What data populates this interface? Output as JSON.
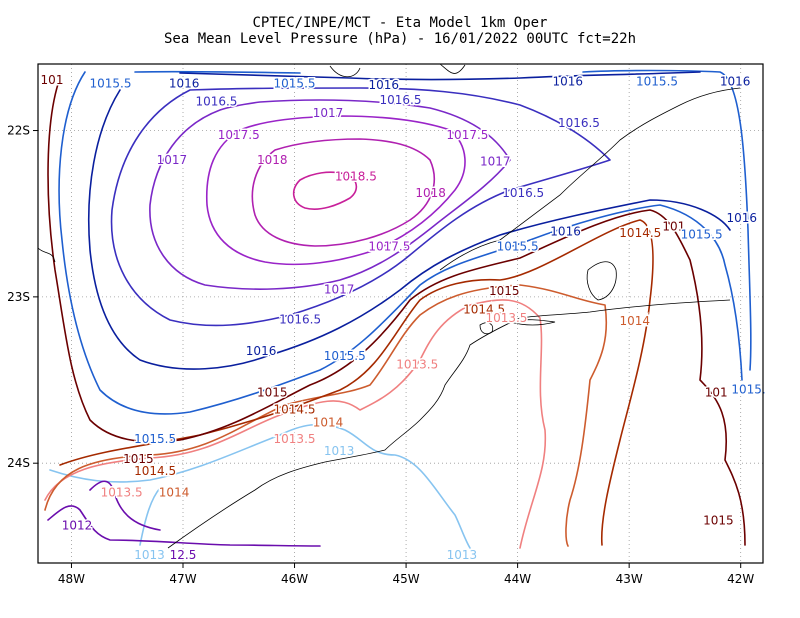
{
  "title_line1": "CPTEC/INPE/MCT -  Eta Model 1km Oper",
  "title_line2": "Sea Mean Level Pressure (hPa) - 16/01/2022 00UTC fct=22h",
  "map": {
    "lon_range": [
      -48.3,
      -41.8
    ],
    "lat_range": [
      -24.6,
      -21.6
    ],
    "lon_ticks": [
      {
        "value": -48,
        "label": "48W"
      },
      {
        "value": -47,
        "label": "47W"
      },
      {
        "value": -46,
        "label": "46W"
      },
      {
        "value": -45,
        "label": "45W"
      },
      {
        "value": -44,
        "label": "44W"
      },
      {
        "value": -43,
        "label": "43W"
      },
      {
        "value": -42,
        "label": "42W"
      }
    ],
    "lat_ticks": [
      {
        "value": -22,
        "label": "22S"
      },
      {
        "value": -23,
        "label": "23S"
      },
      {
        "value": -24,
        "label": "24S"
      }
    ],
    "grid": "dotted",
    "colors": {
      "1012.5": "#6a0dad",
      "1013": "#87c4f0",
      "1013.5": "#f08080",
      "1014": "#cd5c2e",
      "1014.5": "#a52a00",
      "1015": "#6b0000",
      "1015.5": "#1f5fcf",
      "1016": "#0a1f9e",
      "1016.5": "#3a2fbf",
      "1017": "#7a28c8",
      "1017.5": "#9a24c8",
      "1018": "#b020b0",
      "1018.5": "#c8209a"
    }
  },
  "labels": [
    {
      "text": "101",
      "lon": -48.2,
      "lat": -21.72,
      "level": "1015"
    },
    {
      "text": "1015.5",
      "lon": -47.65,
      "lat": -21.74,
      "level": "1015.5"
    },
    {
      "text": "1016",
      "lon": -46.99,
      "lat": -21.74,
      "level": "1016"
    },
    {
      "text": "1015.5",
      "lon": -46.0,
      "lat": -21.74,
      "level": "1015.5"
    },
    {
      "text": "1016",
      "lon": -45.2,
      "lat": -21.75,
      "level": "1016"
    },
    {
      "text": "1016",
      "lon": -43.55,
      "lat": -21.73,
      "level": "1016"
    },
    {
      "text": "1015.5",
      "lon": -42.75,
      "lat": -21.73,
      "level": "1015.5"
    },
    {
      "text": "1016",
      "lon": -42.05,
      "lat": -21.73,
      "level": "1016"
    },
    {
      "text": "1016.5",
      "lon": -46.7,
      "lat": -21.85,
      "level": "1016.5"
    },
    {
      "text": "1016.5",
      "lon": -45.05,
      "lat": -21.84,
      "level": "1016.5"
    },
    {
      "text": "1017",
      "lon": -45.7,
      "lat": -21.92,
      "level": "1017"
    },
    {
      "text": "1016.5",
      "lon": -43.45,
      "lat": -21.98,
      "level": "1016.5"
    },
    {
      "text": "1017.5",
      "lon": -46.5,
      "lat": -22.05,
      "level": "1017.5"
    },
    {
      "text": "1017.5",
      "lon": -44.45,
      "lat": -22.05,
      "level": "1017.5"
    },
    {
      "text": "1017",
      "lon": -47.1,
      "lat": -22.2,
      "level": "1017"
    },
    {
      "text": "1018",
      "lon": -46.2,
      "lat": -22.2,
      "level": "1018"
    },
    {
      "text": "1017",
      "lon": -44.2,
      "lat": -22.21,
      "level": "1017"
    },
    {
      "text": "1018.5",
      "lon": -45.45,
      "lat": -22.3,
      "level": "1018.5"
    },
    {
      "text": "1018",
      "lon": -44.78,
      "lat": -22.4,
      "level": "1018"
    },
    {
      "text": "1016.5",
      "lon": -43.95,
      "lat": -22.4,
      "level": "1016.5"
    },
    {
      "text": "1016",
      "lon": -43.57,
      "lat": -22.63,
      "level": "1016"
    },
    {
      "text": "1014.5",
      "lon": -42.9,
      "lat": -22.64,
      "level": "1014.5"
    },
    {
      "text": "101",
      "lon": -42.6,
      "lat": -22.6,
      "level": "1015"
    },
    {
      "text": "1015.5",
      "lon": -42.35,
      "lat": -22.65,
      "level": "1015.5"
    },
    {
      "text": "1016",
      "lon": -41.99,
      "lat": -22.55,
      "level": "1016"
    },
    {
      "text": "1017.5",
      "lon": -45.15,
      "lat": -22.72,
      "level": "1017.5"
    },
    {
      "text": "1015.5",
      "lon": -44.0,
      "lat": -22.72,
      "level": "1015.5"
    },
    {
      "text": "1017",
      "lon": -45.6,
      "lat": -22.98,
      "level": "1017"
    },
    {
      "text": "1015",
      "lon": -44.12,
      "lat": -22.99,
      "level": "1015"
    },
    {
      "text": "1014.5",
      "lon": -44.3,
      "lat": -23.1,
      "level": "1014.5"
    },
    {
      "text": "1013.5",
      "lon": -44.1,
      "lat": -23.15,
      "level": "1013.5"
    },
    {
      "text": "1014",
      "lon": -42.95,
      "lat": -23.17,
      "level": "1014"
    },
    {
      "text": "1016.5",
      "lon": -45.95,
      "lat": -23.16,
      "level": "1016.5"
    },
    {
      "text": "1016",
      "lon": -46.3,
      "lat": -23.35,
      "level": "1016"
    },
    {
      "text": "1015.5",
      "lon": -45.55,
      "lat": -23.38,
      "level": "1015.5"
    },
    {
      "text": "1013.5",
      "lon": -44.9,
      "lat": -23.43,
      "level": "1013.5"
    },
    {
      "text": "1015",
      "lon": -46.2,
      "lat": -23.6,
      "level": "1015"
    },
    {
      "text": "1014.5",
      "lon": -46.0,
      "lat": -23.7,
      "level": "1014.5"
    },
    {
      "text": "1014",
      "lon": -45.7,
      "lat": -23.78,
      "level": "1014"
    },
    {
      "text": "1013.5",
      "lon": -46.0,
      "lat": -23.88,
      "level": "1013.5"
    },
    {
      "text": "1013",
      "lon": -45.6,
      "lat": -23.95,
      "level": "1013"
    },
    {
      "text": "1015.5",
      "lon": -47.25,
      "lat": -23.88,
      "level": "1015.5"
    },
    {
      "text": "1015",
      "lon": -47.4,
      "lat": -24.0,
      "level": "1015"
    },
    {
      "text": "1014.5",
      "lon": -47.25,
      "lat": -24.07,
      "level": "1014.5"
    },
    {
      "text": "1013.5",
      "lon": -47.55,
      "lat": -24.2,
      "level": "1013.5"
    },
    {
      "text": "1014",
      "lon": -47.08,
      "lat": -24.2,
      "level": "1014"
    },
    {
      "text": "101",
      "lon": -42.22,
      "lat": -23.6,
      "level": "1015"
    },
    {
      "text": "1015.",
      "lon": -41.93,
      "lat": -23.58,
      "level": "1015.5"
    },
    {
      "text": "1015",
      "lon": -42.2,
      "lat": -24.37,
      "level": "1015"
    },
    {
      "text": "1012",
      "lon": -47.95,
      "lat": -24.4,
      "level": "1012.5"
    },
    {
      "text": "1013",
      "lon": -47.3,
      "lat": -24.6,
      "level": "1013"
    },
    {
      "text": "12.5",
      "lon": -47.0,
      "lat": -24.6,
      "level": "1012.5"
    },
    {
      "text": "1013",
      "lon": -44.5,
      "lat": -24.7,
      "level": "1013"
    }
  ]
}
